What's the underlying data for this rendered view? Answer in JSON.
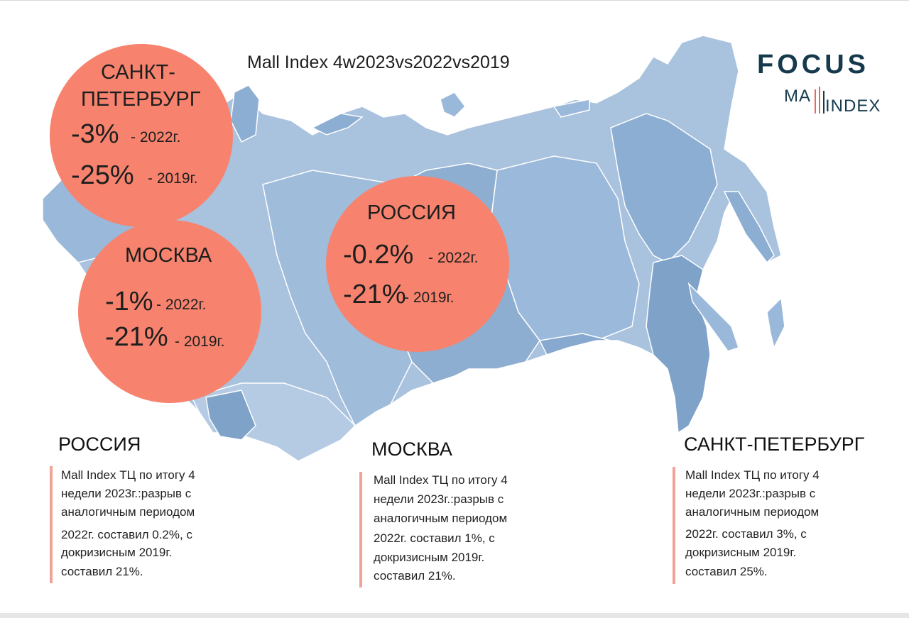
{
  "title": "Mall Index 4w2023vs2022vs2019",
  "logo": {
    "focus": "FOCUS",
    "mall": "MA",
    "index": "INDEX"
  },
  "circles": {
    "spb": {
      "name1": "САНКТ-",
      "name2": "ПЕТЕРБУРГ",
      "v1": "-3%",
      "y1": "-  2022г.",
      "v2": "-25%",
      "y2": "- 2019г."
    },
    "msk": {
      "name": "МОСКВА",
      "v1": "-1%",
      "y1": "- 2022г.",
      "v2": "-21%",
      "y2": "- 2019г."
    },
    "rus": {
      "name": "РОССИЯ",
      "v1": "-0.2%",
      "y1": "-  2022г.",
      "v2": "-21%",
      "y2": "- 2019г."
    }
  },
  "columns": {
    "russia": {
      "title": "РОССИЯ",
      "lines": [
        "Mall Index ТЦ по итогу 4",
        "недели 2023г.:разрыв с",
        "аналогичным периодом",
        "2022г. составил 0.2%, с",
        "докризисным 2019г.",
        "составил 21%."
      ]
    },
    "moscow": {
      "title": "МОСКВА",
      "lines": [
        "Mall Index ТЦ по итогу 4",
        "недели 2023г.:разрыв с",
        "аналогичным периодом",
        "2022г. составил 1%, с",
        "докризисным 2019г.",
        "составил 21%."
      ]
    },
    "spb": {
      "title": "САНКТ-ПЕТЕРБУРГ",
      "lines": [
        "Mall Index ТЦ по итогу 4",
        "недели 2023г.:разрыв с",
        "аналогичным периодом",
        "2022г. составил 3%, с",
        "докризисным 2019г.",
        "составил 25%."
      ]
    }
  },
  "colors": {
    "circle": "#f7836e",
    "map_light": "#b9cde3",
    "map_mid": "#92b1d3",
    "map_dark": "#7fa2c9",
    "brand": "#163a4d",
    "accent_bar": "#f2a296"
  }
}
